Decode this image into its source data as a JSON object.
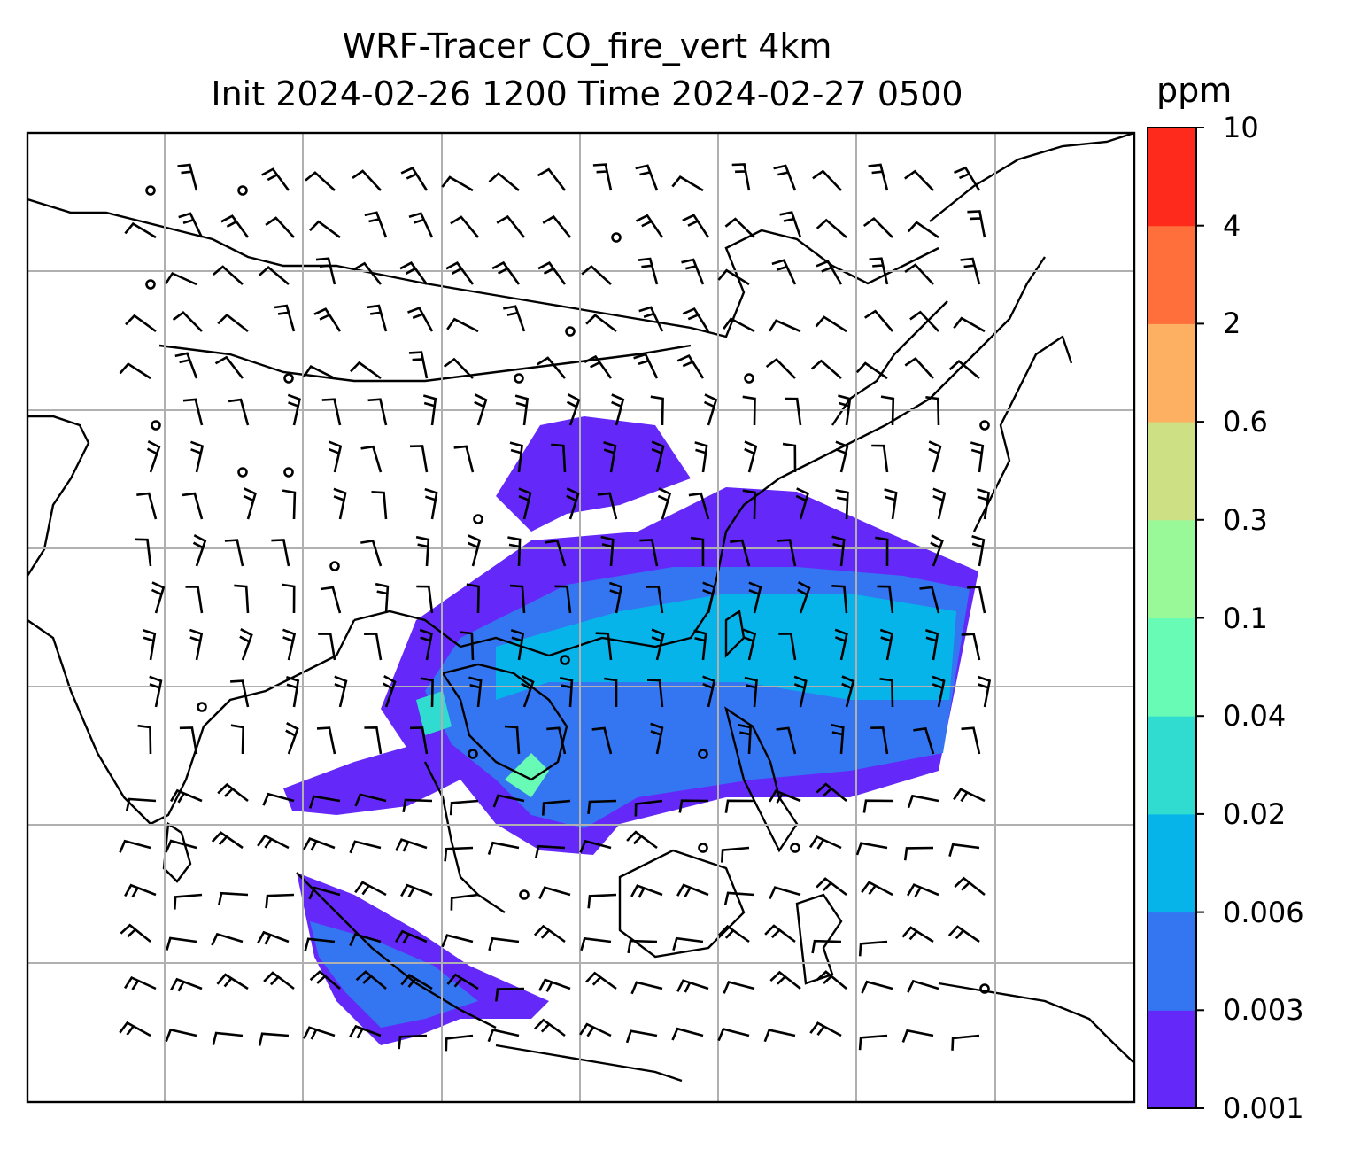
{
  "title": {
    "line1": "WRF-Tracer CO_fire_vert 4km",
    "line2": "Init 2024-02-26 1200 Time 2024-02-27 0500"
  },
  "colorbar": {
    "unit": "ppm",
    "levels": [
      "0.001",
      "0.003",
      "0.006",
      "0.02",
      "0.04",
      "0.1",
      "0.3",
      "0.6",
      "2",
      "4",
      "10"
    ],
    "colors": [
      "#6429f8",
      "#3475f1",
      "#07b4ea",
      "#30dbcf",
      "#68fbb5",
      "#99f898",
      "#cde083",
      "#fdb062",
      "#fe6f3c",
      "#fe2a1b"
    ]
  },
  "map": {
    "background": "#ffffff",
    "gridlines": true,
    "grid_color": "#b0b0b0",
    "coastline_color": "#000000",
    "wind_barbs": true
  }
}
